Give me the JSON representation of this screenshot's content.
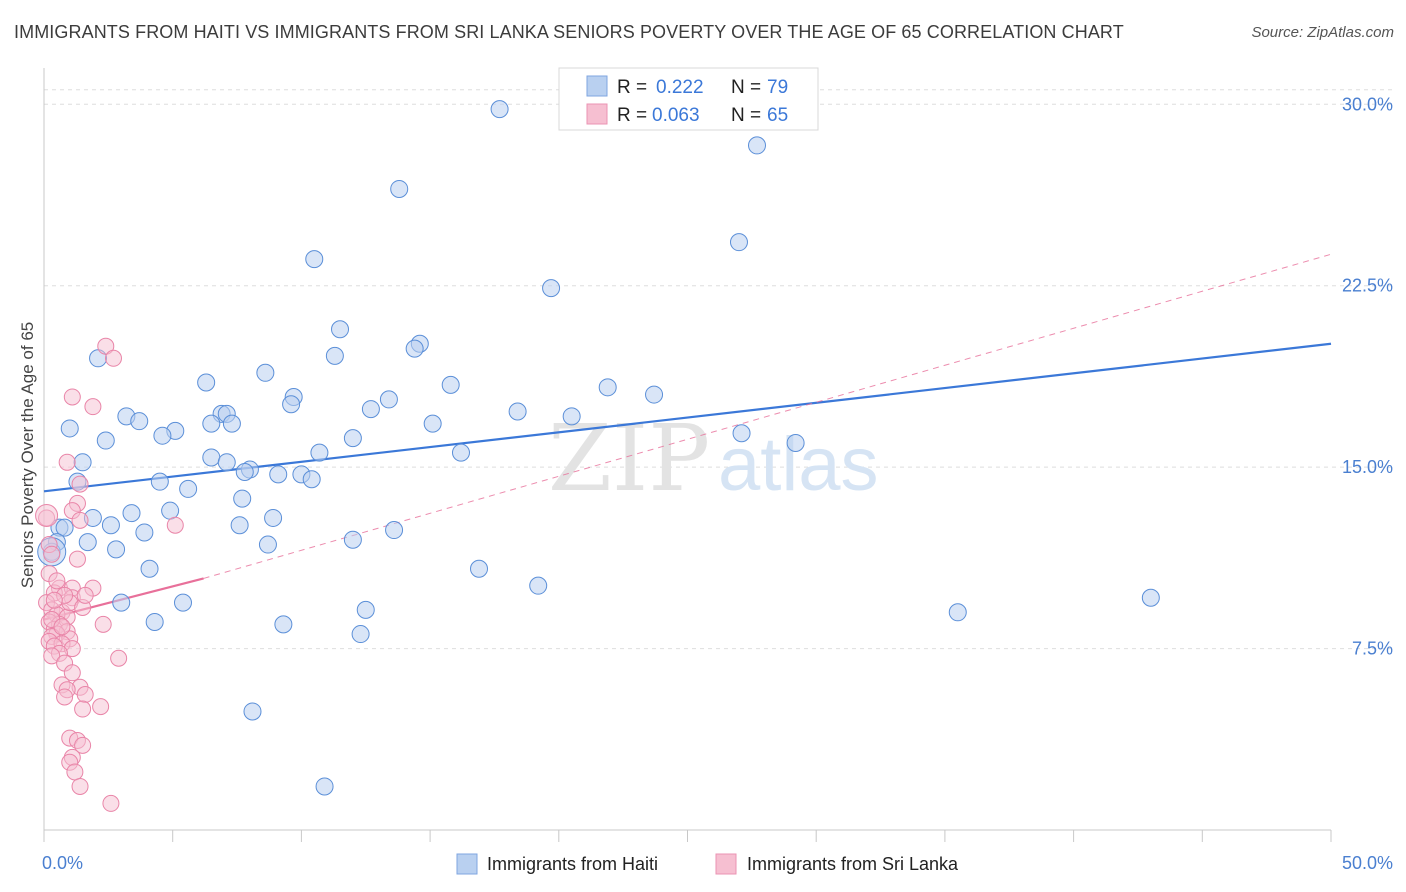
{
  "title": "IMMIGRANTS FROM HAITI VS IMMIGRANTS FROM SRI LANKA SENIORS POVERTY OVER THE AGE OF 65 CORRELATION CHART",
  "source": "Source: ZipAtlas.com",
  "watermark": {
    "zip": "ZIP",
    "atlas": "atlas"
  },
  "colors": {
    "blue": "#3b78d8",
    "blue_fill": "#b9d0f0",
    "pink": "#e8709a",
    "pink_fill": "#f6bfd1",
    "axis_label": "#4a7fd0"
  },
  "legend": {
    "r_label": "R =",
    "n_label": "N =",
    "series": [
      {
        "r": "0.222",
        "n": "79"
      },
      {
        "r": "0.063",
        "n": "65"
      }
    ]
  },
  "chart_data": {
    "type": "scatter",
    "title": "IMMIGRANTS FROM HAITI VS IMMIGRANTS FROM SRI LANKA SENIORS POVERTY OVER THE AGE OF 65 CORRELATION CHART",
    "xlabel": "",
    "ylabel": "Seniors Poverty Over the Age of 65",
    "xlim": [
      0,
      50
    ],
    "ylim": [
      0,
      31.5
    ],
    "x_tick_labels": [
      "0.0%",
      "50.0%"
    ],
    "y_ticks": [
      7.5,
      15.0,
      22.5,
      30.0
    ],
    "y_tick_labels": [
      "7.5%",
      "15.0%",
      "22.5%",
      "30.0%"
    ],
    "grid": true,
    "legend_position": "top-center",
    "series": [
      {
        "name": "Immigrants from Haiti",
        "color": "#3b78d8",
        "r": 0.222,
        "n": 79,
        "trend": {
          "x0": 0,
          "y0": 14.0,
          "x1": 50,
          "y1": 20.1,
          "style": "solid"
        },
        "points": [
          [
            17.7,
            29.8
          ],
          [
            27.7,
            28.3
          ],
          [
            13.8,
            26.5
          ],
          [
            27.0,
            24.3
          ],
          [
            10.5,
            23.6
          ],
          [
            19.7,
            22.4
          ],
          [
            11.5,
            20.7
          ],
          [
            14.6,
            20.1
          ],
          [
            14.4,
            19.9
          ],
          [
            11.3,
            19.6
          ],
          [
            2.1,
            19.5
          ],
          [
            8.6,
            18.9
          ],
          [
            6.3,
            18.5
          ],
          [
            15.8,
            18.4
          ],
          [
            21.9,
            18.3
          ],
          [
            23.7,
            18.0
          ],
          [
            9.7,
            17.9
          ],
          [
            13.4,
            17.8
          ],
          [
            9.6,
            17.6
          ],
          [
            12.7,
            17.4
          ],
          [
            18.4,
            17.3
          ],
          [
            6.9,
            17.2
          ],
          [
            7.1,
            17.2
          ],
          [
            3.2,
            17.1
          ],
          [
            20.5,
            17.1
          ],
          [
            3.7,
            16.9
          ],
          [
            15.1,
            16.8
          ],
          [
            6.5,
            16.8
          ],
          [
            7.3,
            16.8
          ],
          [
            1.0,
            16.6
          ],
          [
            5.1,
            16.5
          ],
          [
            4.6,
            16.3
          ],
          [
            27.1,
            16.4
          ],
          [
            12.0,
            16.2
          ],
          [
            2.4,
            16.1
          ],
          [
            29.2,
            16.0
          ],
          [
            10.7,
            15.6
          ],
          [
            16.2,
            15.6
          ],
          [
            6.5,
            15.4
          ],
          [
            7.1,
            15.2
          ],
          [
            1.5,
            15.2
          ],
          [
            8.0,
            14.9
          ],
          [
            7.8,
            14.8
          ],
          [
            9.1,
            14.7
          ],
          [
            10.0,
            14.7
          ],
          [
            10.4,
            14.5
          ],
          [
            4.5,
            14.4
          ],
          [
            1.3,
            14.4
          ],
          [
            5.6,
            14.1
          ],
          [
            7.7,
            13.7
          ],
          [
            4.9,
            13.2
          ],
          [
            3.4,
            13.1
          ],
          [
            1.9,
            12.9
          ],
          [
            8.9,
            12.9
          ],
          [
            0.6,
            12.5
          ],
          [
            0.8,
            12.5
          ],
          [
            2.6,
            12.6
          ],
          [
            7.6,
            12.6
          ],
          [
            3.9,
            12.3
          ],
          [
            13.6,
            12.4
          ],
          [
            0.5,
            11.9
          ],
          [
            1.7,
            11.9
          ],
          [
            12.0,
            12.0
          ],
          [
            0.3,
            11.5
          ],
          [
            8.7,
            11.8
          ],
          [
            2.8,
            11.6
          ],
          [
            4.1,
            10.8
          ],
          [
            16.9,
            10.8
          ],
          [
            19.2,
            10.1
          ],
          [
            43.0,
            9.6
          ],
          [
            3.0,
            9.4
          ],
          [
            5.4,
            9.4
          ],
          [
            12.5,
            9.1
          ],
          [
            35.5,
            9.0
          ],
          [
            4.3,
            8.6
          ],
          [
            9.3,
            8.5
          ],
          [
            12.3,
            8.1
          ],
          [
            8.1,
            4.9
          ],
          [
            10.9,
            1.8
          ]
        ]
      },
      {
        "name": "Immigrants from Sri Lanka",
        "color": "#e8709a",
        "r": 0.063,
        "n": 65,
        "trend": {
          "x0": 0,
          "y0": 8.7,
          "x1": 6.2,
          "y1": 10.4,
          "style": "solid",
          "extension": {
            "x1": 50,
            "y1": 23.8,
            "style": "dashed"
          }
        },
        "points": [
          [
            2.4,
            20.0
          ],
          [
            2.7,
            19.5
          ],
          [
            1.1,
            17.9
          ],
          [
            1.9,
            17.5
          ],
          [
            0.9,
            15.2
          ],
          [
            1.4,
            14.3
          ],
          [
            1.3,
            13.5
          ],
          [
            1.1,
            13.2
          ],
          [
            1.4,
            12.8
          ],
          [
            0.1,
            12.9
          ],
          [
            5.1,
            12.6
          ],
          [
            0.2,
            11.8
          ],
          [
            0.3,
            11.4
          ],
          [
            1.3,
            11.2
          ],
          [
            0.6,
            10.0
          ],
          [
            1.1,
            10.0
          ],
          [
            1.9,
            10.0
          ],
          [
            0.4,
            9.8
          ],
          [
            1.1,
            9.6
          ],
          [
            0.1,
            9.4
          ],
          [
            0.3,
            9.1
          ],
          [
            0.7,
            9.0
          ],
          [
            0.5,
            8.9
          ],
          [
            0.9,
            8.8
          ],
          [
            0.2,
            8.6
          ],
          [
            0.6,
            8.5
          ],
          [
            2.3,
            8.5
          ],
          [
            0.4,
            8.3
          ],
          [
            0.9,
            8.2
          ],
          [
            0.5,
            8.1
          ],
          [
            0.3,
            8.0
          ],
          [
            1.0,
            7.9
          ],
          [
            0.2,
            7.8
          ],
          [
            0.7,
            7.7
          ],
          [
            0.4,
            7.6
          ],
          [
            1.1,
            7.5
          ],
          [
            0.6,
            7.3
          ],
          [
            0.3,
            7.2
          ],
          [
            2.9,
            7.1
          ],
          [
            0.8,
            6.9
          ],
          [
            1.1,
            6.5
          ],
          [
            0.7,
            6.0
          ],
          [
            1.4,
            5.9
          ],
          [
            0.9,
            5.8
          ],
          [
            1.6,
            5.6
          ],
          [
            0.8,
            5.5
          ],
          [
            2.2,
            5.1
          ],
          [
            1.5,
            5.0
          ],
          [
            1.0,
            3.8
          ],
          [
            1.3,
            3.7
          ],
          [
            1.5,
            3.5
          ],
          [
            1.1,
            3.0
          ],
          [
            1.0,
            2.8
          ],
          [
            1.2,
            2.4
          ],
          [
            1.4,
            1.8
          ],
          [
            2.6,
            1.1
          ],
          [
            0.2,
            10.6
          ],
          [
            0.5,
            10.3
          ],
          [
            1.0,
            9.4
          ],
          [
            1.5,
            9.2
          ],
          [
            0.8,
            9.7
          ],
          [
            1.6,
            9.7
          ],
          [
            0.4,
            9.5
          ],
          [
            0.3,
            8.7
          ],
          [
            0.7,
            8.4
          ]
        ]
      }
    ]
  },
  "bottom_legend": [
    {
      "label": "Immigrants from Haiti"
    },
    {
      "label": "Immigrants from Sri Lanka"
    }
  ]
}
